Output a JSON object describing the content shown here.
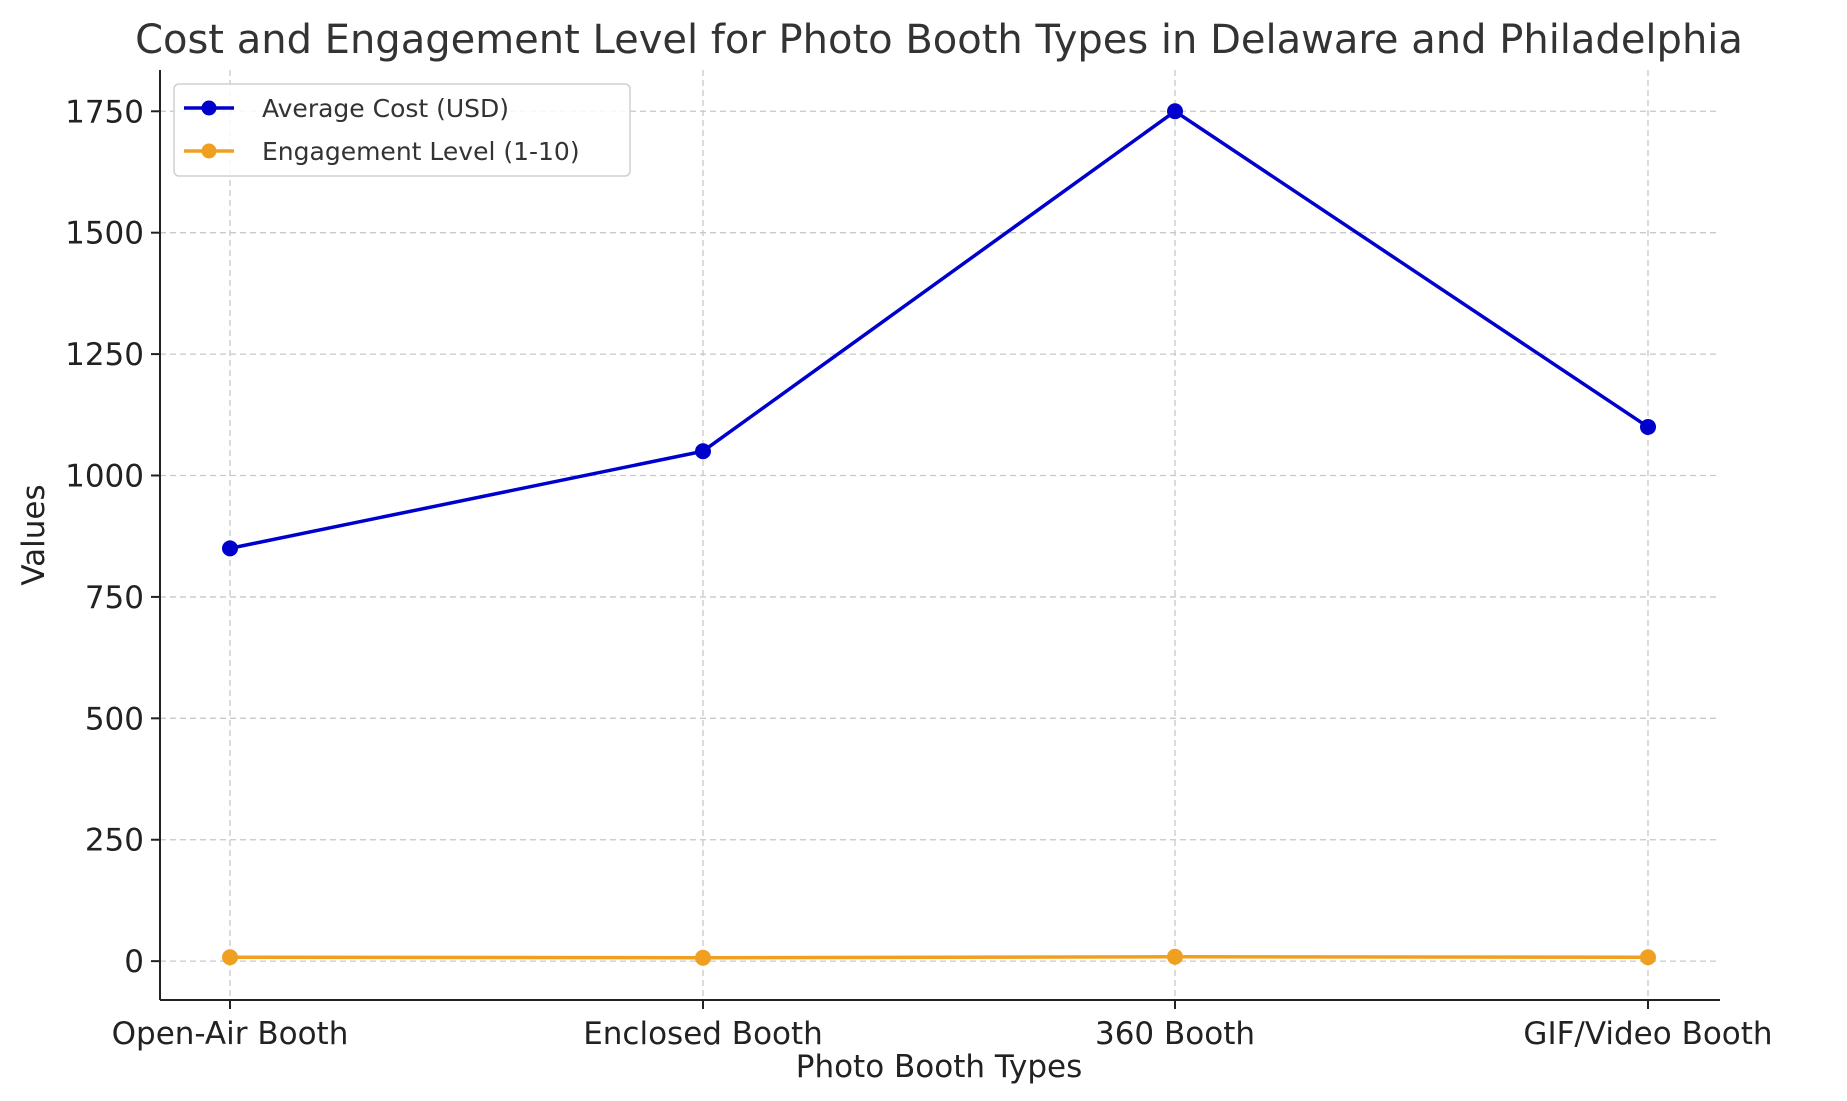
{
  "chart_data": {
    "type": "line",
    "title": "Cost and Engagement Level for Photo Booth Types in Delaware and Philadelphia",
    "xlabel": "Photo Booth Types",
    "ylabel": "Values",
    "categories": [
      "Open-Air Booth",
      "Enclosed Booth",
      "360 Booth",
      "GIF/Video Booth"
    ],
    "series": [
      {
        "name": "Average Cost (USD)",
        "color": "#0000cc",
        "values": [
          850,
          1050,
          1750,
          1100
        ]
      },
      {
        "name": "Engagement Level (1-10)",
        "color": "#f0a020",
        "values": [
          8,
          7,
          9,
          8
        ]
      }
    ],
    "ylim": [
      -80,
      1835
    ],
    "yticks": [
      0,
      250,
      500,
      750,
      1000,
      1250,
      1500,
      1750
    ],
    "grid": true,
    "legend_position": "top-left"
  }
}
